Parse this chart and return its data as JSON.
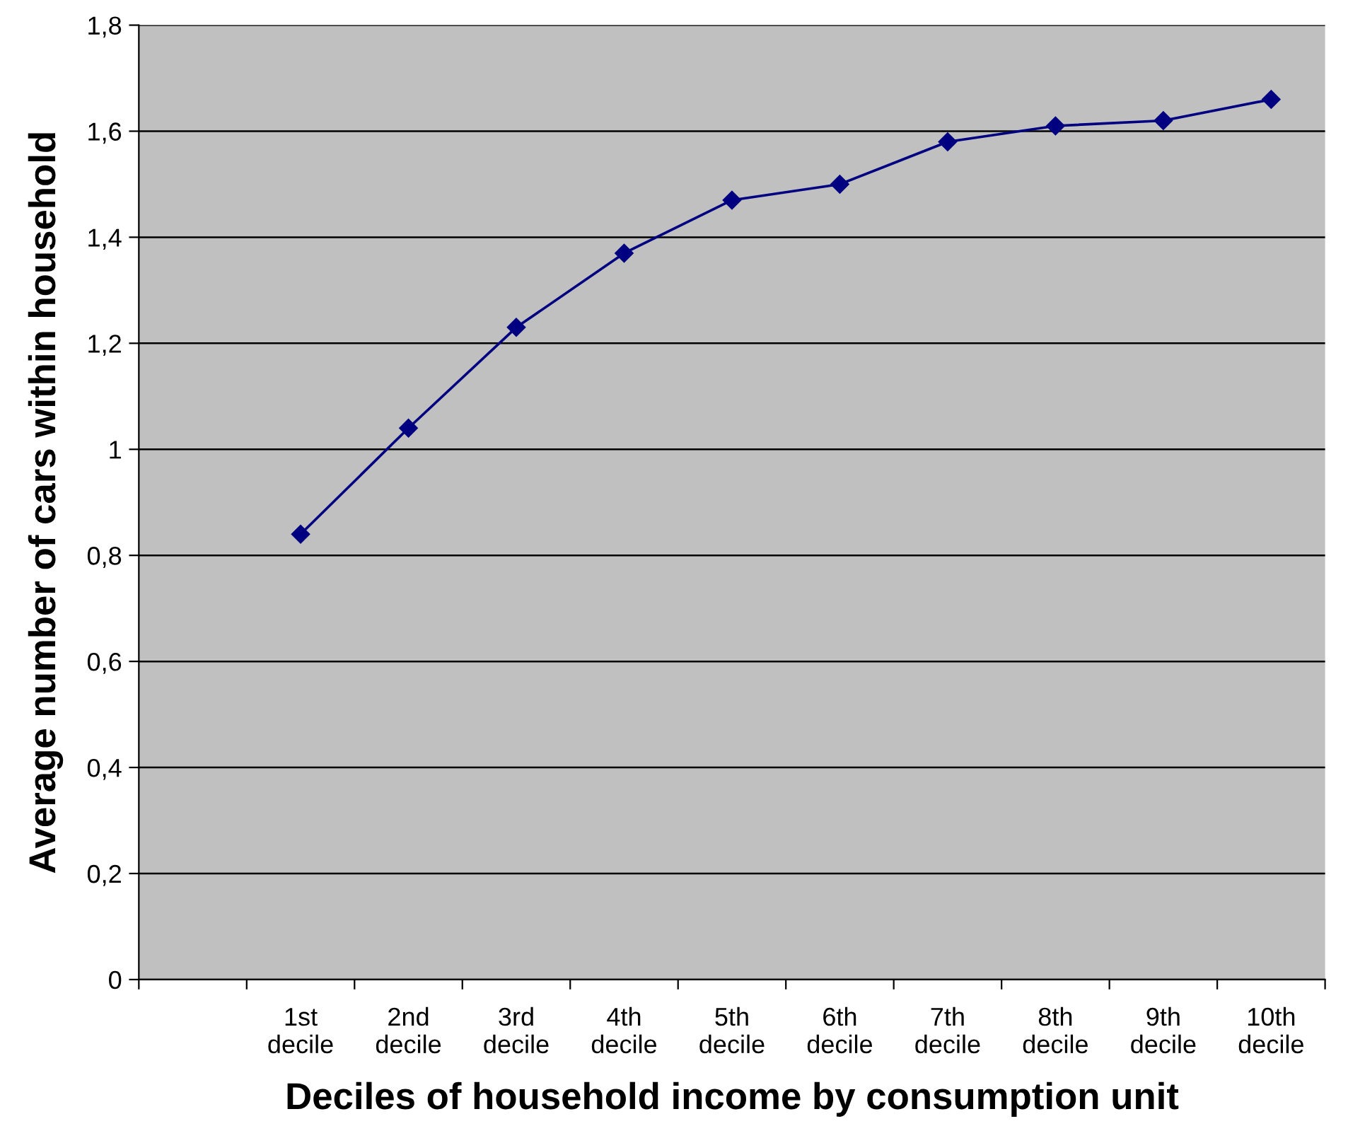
{
  "chart_data": {
    "type": "line",
    "xlabel": "Deciles of household income by consumption unit",
    "ylabel": "Average number of cars within household",
    "categories": [
      null,
      "1st\ndecile",
      "2nd\ndecile",
      "3rd\ndecile",
      "4th\ndecile",
      "5th\ndecile",
      "6th\ndecile",
      "7th\ndecile",
      "8th\ndecile",
      "9th\ndecile",
      "10th\ndecile"
    ],
    "series": [
      {
        "color": "#000080",
        "values": [
          null,
          0.84,
          1.04,
          1.23,
          1.37,
          1.47,
          1.5,
          1.58,
          1.61,
          1.62,
          1.66
        ]
      }
    ],
    "ylim": [
      0,
      1.8
    ],
    "yticks": [
      0,
      {
        "value": 0.2,
        "label": "0,2"
      },
      {
        "value": 0.4,
        "label": "0,4"
      },
      {
        "value": 0.6,
        "label": "0,6"
      },
      {
        "value": 0.8,
        "label": "0,8"
      },
      1,
      {
        "value": 1.2,
        "label": "1,2"
      },
      {
        "value": 1.4,
        "label": "1,4"
      },
      {
        "value": 1.6,
        "label": "1,6"
      },
      {
        "value": 1.8,
        "label": "1,8"
      }
    ],
    "grid": "y",
    "marker": "diamond",
    "line_style": "solid"
  }
}
